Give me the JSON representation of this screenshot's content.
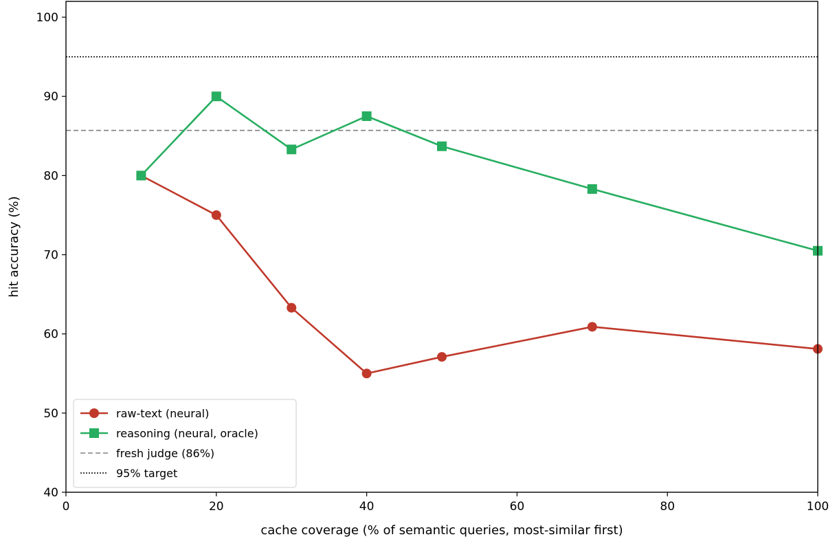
{
  "chart_data": {
    "type": "line",
    "title": "",
    "xlabel": "cache coverage (% of semantic queries, most-similar first)",
    "ylabel": "hit accuracy (%)",
    "xlim": [
      0,
      100
    ],
    "ylim": [
      40,
      102
    ],
    "xticks": [
      0,
      20,
      40,
      60,
      80,
      100
    ],
    "yticks": [
      40,
      50,
      60,
      70,
      80,
      90,
      100
    ],
    "grid": false,
    "legend_position": "lower-left",
    "series": [
      {
        "name": "raw-text (neural)",
        "color": "#c0392b",
        "marker": "circle",
        "x": [
          10,
          20,
          30,
          40,
          50,
          70,
          100
        ],
        "y": [
          80.0,
          75.0,
          63.3,
          55.0,
          57.1,
          60.9,
          58.1
        ]
      },
      {
        "name": "reasoning (neural, oracle)",
        "color": "#27ae60",
        "marker": "square",
        "x": [
          10,
          20,
          30,
          40,
          50,
          70,
          100
        ],
        "y": [
          80.0,
          90.0,
          83.3,
          87.5,
          83.7,
          78.3,
          70.5
        ]
      }
    ],
    "reference_lines": [
      {
        "name": "fresh judge (86%)",
        "y": 85.7,
        "color": "#808080",
        "style": "dashed"
      },
      {
        "name": "95% target",
        "y": 95,
        "color": "#000000",
        "style": "dotted"
      }
    ]
  }
}
